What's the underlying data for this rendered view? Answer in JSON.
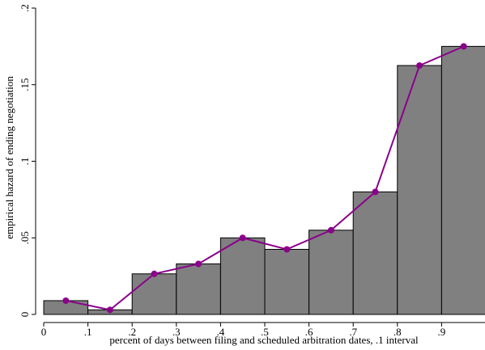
{
  "chart_data": {
    "type": "bar",
    "xlabel": "percent of days between filing and scheduled arbitration dates, .1 interval",
    "ylabel": "empirical hazard of ending negotiation",
    "xlim": [
      0,
      1
    ],
    "ylim": [
      0,
      0.2
    ],
    "x_ticks": [
      0,
      0.1,
      0.2,
      0.3,
      0.4,
      0.5,
      0.6,
      0.7,
      0.8,
      0.9
    ],
    "x_tick_labels": [
      "0",
      ".1",
      ".2",
      ".3",
      ".4",
      ".5",
      ".6",
      ".7",
      ".8",
      ".9"
    ],
    "y_ticks": [
      0,
      0.05,
      0.1,
      0.15,
      0.2
    ],
    "y_tick_labels": [
      "0",
      ".05",
      ".1",
      ".15",
      ".2"
    ],
    "bin_width": 0.1,
    "bars": {
      "x_start": [
        0,
        0.1,
        0.2,
        0.3,
        0.4,
        0.5,
        0.6,
        0.7,
        0.8,
        0.9
      ],
      "values": [
        0.009,
        0.003,
        0.0265,
        0.033,
        0.05,
        0.0425,
        0.055,
        0.08,
        0.1625,
        0.175
      ],
      "color": "#808080"
    },
    "line": {
      "x": [
        0.05,
        0.15,
        0.25,
        0.35,
        0.45,
        0.55,
        0.65,
        0.75,
        0.85,
        0.95
      ],
      "y": [
        0.009,
        0.003,
        0.0265,
        0.033,
        0.05,
        0.0425,
        0.055,
        0.08,
        0.1625,
        0.175
      ],
      "color": "#8b008b"
    },
    "grid": false
  }
}
